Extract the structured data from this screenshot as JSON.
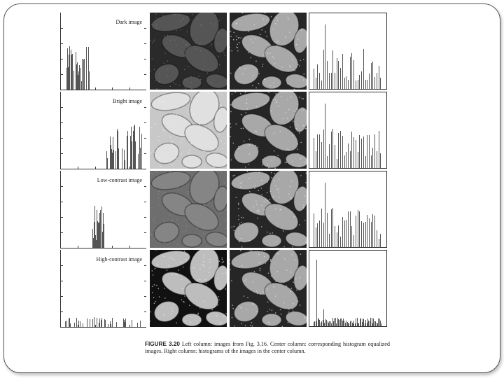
{
  "figure": {
    "number": "FIGURE 3.20",
    "caption": " Left column: images from Fig. 3.16. Center column: corresponding histogram equalized images. Right column: histograms of the images in the center column."
  },
  "rows": [
    {
      "label": "Dark image",
      "input_tone": "dark"
    },
    {
      "label": "Bright image",
      "input_tone": "bright"
    },
    {
      "label": "Low-contrast image",
      "input_tone": "low-contrast"
    },
    {
      "label": "High-contrast image",
      "input_tone": "high-contrast"
    }
  ],
  "colors": {
    "border": "#555555",
    "bars": "#555555",
    "text": "#222222"
  }
}
